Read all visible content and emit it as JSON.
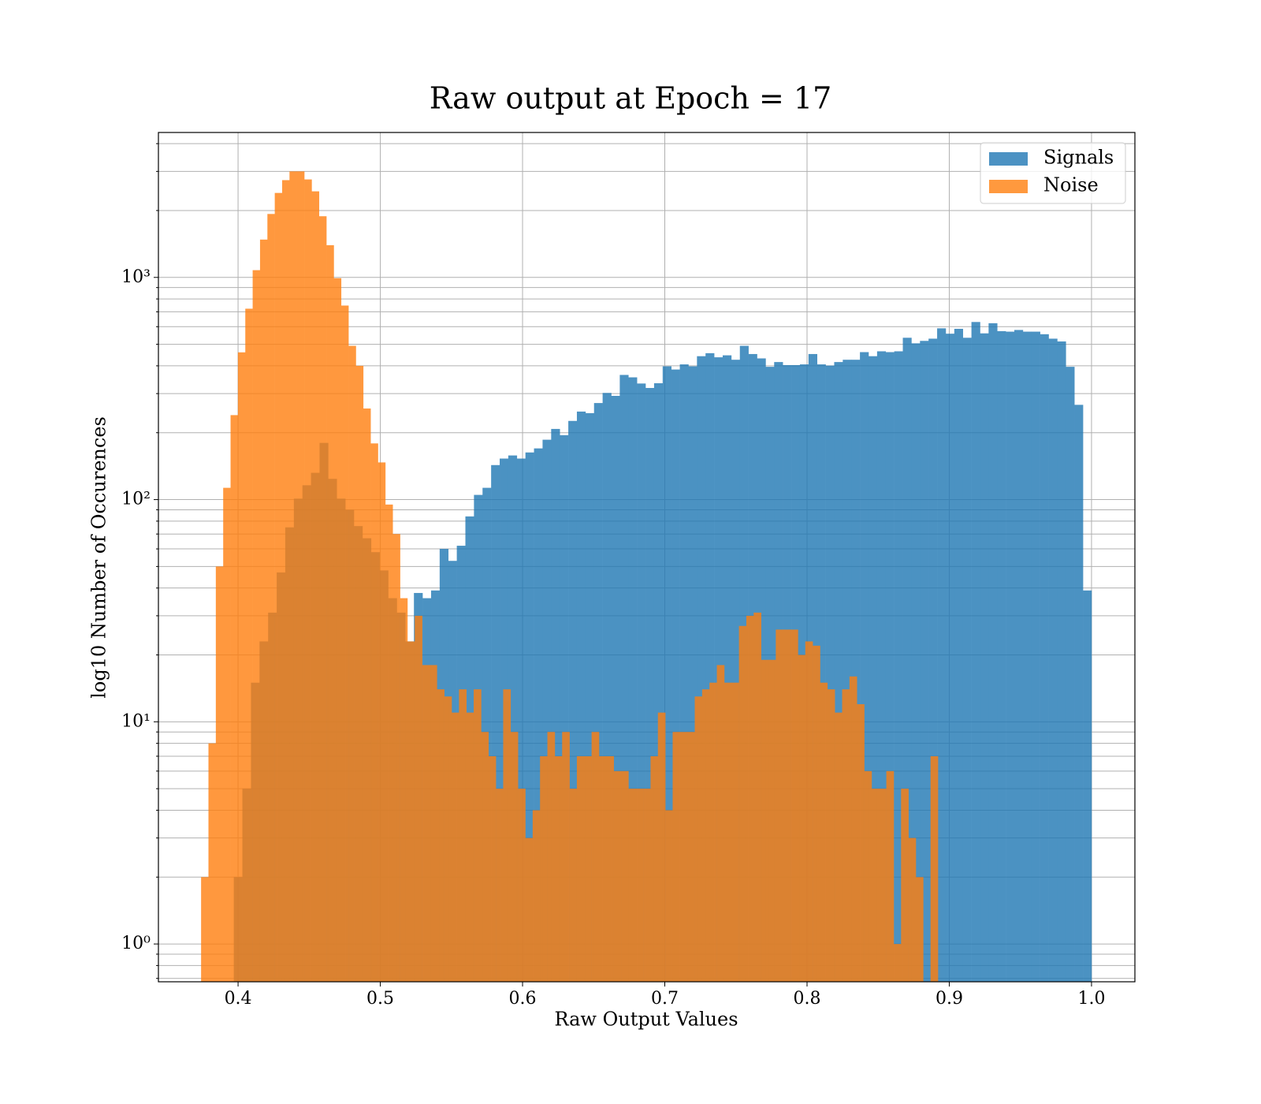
{
  "chart_data": {
    "type": "histogram",
    "title": "Raw output at Epoch = 17",
    "xlabel": "Raw Output Values",
    "ylabel": "log10 Number of Occurences",
    "yscale": "log",
    "grid": true,
    "legend": "upper right",
    "alpha": 0.8,
    "xlim": [
      0.344,
      1.0305
    ],
    "ylim": [
      0.676,
      4490
    ],
    "xticks": [
      0.4,
      0.5,
      0.6,
      0.7,
      0.8,
      0.9,
      {
        "value": 1,
        "label": "1.0"
      }
    ],
    "yticks": [
      {
        "value": 1,
        "label": "10⁰"
      },
      {
        "value": 10,
        "label": "10¹"
      },
      {
        "value": 100,
        "label": "10²"
      },
      {
        "value": 1000,
        "label": "10³"
      }
    ],
    "yminorticks": [
      0.7,
      0.8,
      0.9,
      2,
      3,
      4,
      5,
      6,
      7,
      8,
      9,
      20,
      30,
      40,
      50,
      60,
      70,
      80,
      90,
      200,
      300,
      400,
      500,
      600,
      700,
      800,
      900,
      2000,
      3000,
      4000
    ],
    "series": [
      {
        "name": "Signals",
        "color": "#1f77b4",
        "bins": [
          0.397,
          0.40303,
          0.40906,
          0.41509,
          0.42112,
          0.42715,
          0.43318,
          0.43921,
          0.44524,
          0.45127,
          0.4573,
          0.46333,
          0.46936,
          0.47539,
          0.48142,
          0.48745,
          0.49348,
          0.49951,
          0.50554,
          0.51157,
          0.5176,
          0.52363,
          0.52966,
          0.53569,
          0.54172,
          0.54775,
          0.55378,
          0.55981,
          0.56584,
          0.57187,
          0.5779,
          0.58393,
          0.58996,
          0.59599,
          0.60202,
          0.60805,
          0.61408,
          0.62011,
          0.62614,
          0.63217,
          0.6382,
          0.64423,
          0.65026,
          0.65629,
          0.66232,
          0.66835,
          0.67438,
          0.68041,
          0.68644,
          0.69247,
          0.6985,
          0.70453,
          0.71056,
          0.71659,
          0.72262,
          0.72865,
          0.73468,
          0.74071,
          0.74674,
          0.75277,
          0.7588,
          0.76483,
          0.77086,
          0.77689,
          0.78292,
          0.78895,
          0.79498,
          0.80101,
          0.80704,
          0.81307,
          0.8191,
          0.82513,
          0.83116,
          0.83719,
          0.84322,
          0.84925,
          0.85528,
          0.86131,
          0.86734,
          0.87337,
          0.8794,
          0.88543,
          0.89146,
          0.89749,
          0.90352,
          0.90955,
          0.91558,
          0.92161,
          0.92764,
          0.93367,
          0.9397,
          0.94573,
          0.95176,
          0.95779,
          0.96382,
          0.96985,
          0.97588,
          0.98191,
          0.98794,
          0.99397,
          1.0
        ],
        "values": [
          2,
          5,
          15,
          23,
          31,
          47,
          75,
          101,
          116,
          132,
          180,
          124,
          101,
          90,
          76,
          67,
          58,
          48,
          36,
          31,
          23,
          38,
          36,
          39,
          60,
          53,
          62,
          84,
          105,
          113,
          143,
          153,
          158,
          153,
          163,
          170,
          186,
          208,
          195,
          226,
          249,
          245,
          272,
          302,
          293,
          364,
          355,
          333,
          318,
          334,
          398,
          385,
          406,
          398,
          442,
          456,
          437,
          446,
          426,
          492,
          452,
          432,
          396,
          416,
          403,
          403,
          406,
          452,
          406,
          401,
          416,
          426,
          426,
          461,
          442,
          465,
          461,
          465,
          535,
          505,
          518,
          530,
          590,
          558,
          587,
          535,
          630,
          560,
          622,
          573,
          570,
          580,
          570,
          570,
          555,
          530,
          515,
          396,
          267,
          39
        ]
      },
      {
        "name": "Noise",
        "color": "#ff7f0e",
        "bins": [
          0.374,
          0.37918,
          0.38436,
          0.38954,
          0.39472,
          0.3999,
          0.40508,
          0.41026,
          0.41544,
          0.42062,
          0.4258,
          0.43098,
          0.43616,
          0.44134,
          0.44652,
          0.4517,
          0.45688,
          0.46206,
          0.46724,
          0.47242,
          0.4776,
          0.48278,
          0.48796,
          0.49314,
          0.49832,
          0.5035,
          0.50868,
          0.51386,
          0.51904,
          0.52422,
          0.5294,
          0.53458,
          0.53976,
          0.54494,
          0.55012,
          0.5553,
          0.56048,
          0.56566,
          0.57084,
          0.57602,
          0.5812,
          0.58638,
          0.59156,
          0.59674,
          0.60192,
          0.6071,
          0.61228,
          0.61746,
          0.62264,
          0.62782,
          0.633,
          0.63818,
          0.64336,
          0.64854,
          0.65372,
          0.6589,
          0.66408,
          0.66926,
          0.67444,
          0.67962,
          0.6848,
          0.68998,
          0.69516,
          0.70034,
          0.70552,
          0.7107,
          0.71588,
          0.72106,
          0.72624,
          0.73142,
          0.7366,
          0.74178,
          0.74696,
          0.75214,
          0.75732,
          0.7625,
          0.76768,
          0.77286,
          0.77804,
          0.78322,
          0.7884,
          0.79358,
          0.79876,
          0.80394,
          0.80912,
          0.8143,
          0.81948,
          0.82466,
          0.82984,
          0.83502,
          0.8402,
          0.84538,
          0.85056,
          0.85574,
          0.86092,
          0.8661,
          0.87128,
          0.87646,
          0.88164,
          0.88682,
          0.892
        ],
        "values": [
          2,
          8,
          50,
          113,
          240,
          460,
          723,
          1078,
          1480,
          1930,
          2400,
          2740,
          3000,
          3000,
          2760,
          2440,
          1885,
          1396,
          992,
          747,
          492,
          400,
          257,
          179,
          147,
          95,
          70,
          36,
          23,
          30,
          18,
          18,
          14,
          13,
          11,
          14,
          11,
          14,
          9,
          7,
          5,
          14,
          9,
          5,
          3,
          4,
          7,
          9,
          7,
          9,
          5,
          7,
          7,
          9,
          7,
          7,
          6,
          6,
          5,
          5,
          5,
          7,
          11,
          4,
          9,
          9,
          9,
          13,
          14,
          15,
          18,
          15,
          15,
          27,
          30,
          31,
          19,
          19,
          26,
          26,
          26,
          20,
          23,
          22,
          15,
          14,
          11,
          14,
          16,
          12,
          6,
          5,
          5,
          6,
          1,
          5,
          3,
          2,
          0,
          7
        ]
      }
    ]
  }
}
